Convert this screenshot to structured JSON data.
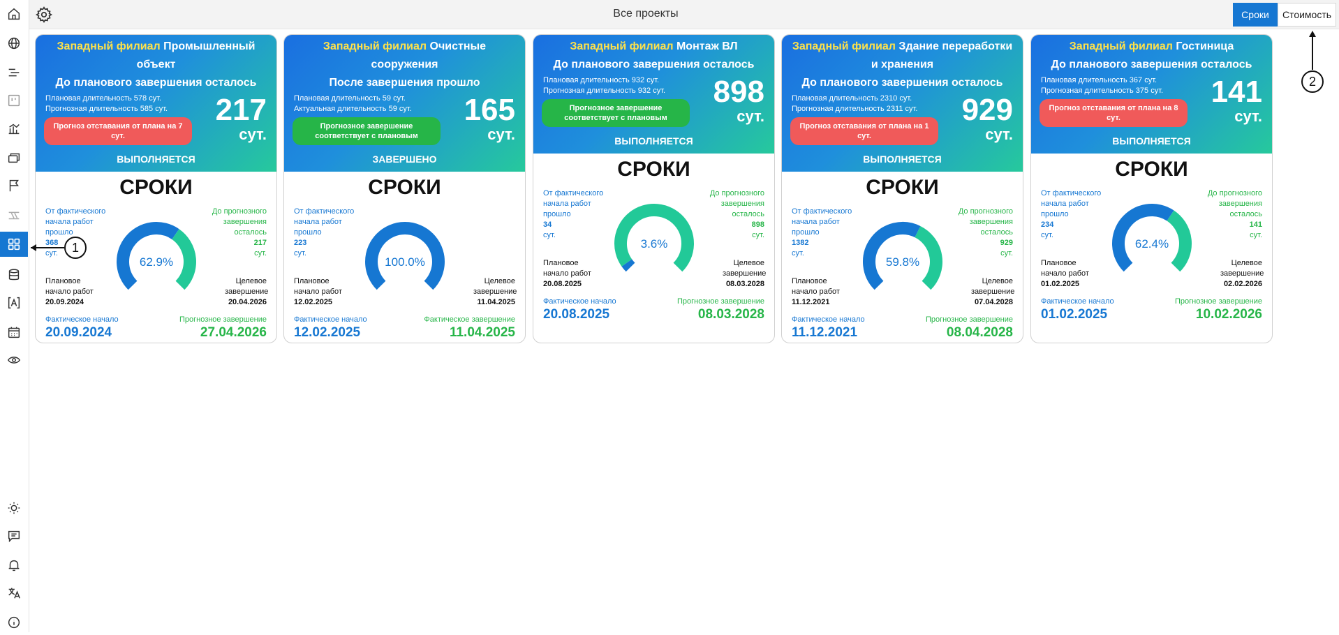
{
  "topbar": {
    "title": "Все проекты",
    "seg_active": "Сроки",
    "seg_other": "Стоимость"
  },
  "sidebar": {
    "items": [
      "home-icon",
      "globe-icon",
      "list-icon",
      "board-icon",
      "chart-icon",
      "layers-icon",
      "flag-icon",
      "gantt-icon",
      "grid-icon",
      "database-icon",
      "text-field-icon",
      "calendar-icon",
      "eye-icon"
    ],
    "bottom_items": [
      "sun-icon",
      "chat-icon",
      "bell-icon",
      "translate-icon",
      "info-icon"
    ]
  },
  "colors": {
    "accent": "#1677d2",
    "green": "#26b548",
    "red_pill": "#f05a5a",
    "branch_yellow": "#ffe24a",
    "gauge_blue": "#1677d2",
    "gauge_green": "#22c998"
  },
  "cards": [
    {
      "branch": "Западный филиал",
      "name": "Промышленный объект",
      "subtitle": "До планового завершения осталось",
      "dur1": "Плановая длительность 578 сут.",
      "dur2": "Прогнозная длительность 585 сут.",
      "pill": "Прогноз отставания от плана на 7 сут.",
      "pill_color": "red",
      "big": "217",
      "unit": "сут.",
      "status": "ВЫПОЛНЯЕТСЯ",
      "section": "СРОКИ",
      "left_label": "От фактического начала работ прошло",
      "left_value": "368",
      "left_unit": "сут.",
      "right_label": "До прогнозного завершения осталось",
      "right_value": "217",
      "right_unit": "сут.",
      "percent_text": "62.9%",
      "percent": 62.9,
      "plan_label": "Плановое начало работ",
      "plan_date": "20.09.2024",
      "target_label": "Целевое завершение",
      "target_date": "20.04.2026",
      "fact_label": "Фактическое начало",
      "fact_date": "20.09.2024",
      "prog_label": "Прогнозное завершение",
      "prog_date": "27.04.2026"
    },
    {
      "branch": "Западный филиал",
      "name": "Очистные сооружения",
      "subtitle": "После завершения прошло",
      "dur1": "Плановая длительность 59 сут.",
      "dur2": "Актуальная длительность 59 сут.",
      "pill": "Прогнозное завершение соответствует с плановым",
      "pill_color": "green",
      "big": "165",
      "unit": "сут.",
      "status": "ЗАВЕРШЕНО",
      "section": "СРОКИ",
      "left_label": "От фактического начала работ прошло",
      "left_value": "223",
      "left_unit": "сут.",
      "right_label": "",
      "right_value": "",
      "right_unit": "",
      "percent_text": "100.0%",
      "percent": 100,
      "plan_label": "Плановое начало работ",
      "plan_date": "12.02.2025",
      "target_label": "Целевое завершение",
      "target_date": "11.04.2025",
      "fact_label": "Фактическое начало",
      "fact_date": "12.02.2025",
      "prog_label": "Фактическое завершение",
      "prog_date": "11.04.2025"
    },
    {
      "branch": "Западный филиал",
      "name": "Монтаж ВЛ",
      "subtitle": "До планового завершения осталось",
      "dur1": "Плановая длительность 932 сут.",
      "dur2": "Прогнозная длительность 932 сут.",
      "pill": "Прогнозное завершение соответствует с плановым",
      "pill_color": "green",
      "big": "898",
      "unit": "сут.",
      "status": "ВЫПОЛНЯЕТСЯ",
      "section": "СРОКИ",
      "left_label": "От фактического начала работ прошло",
      "left_value": "34",
      "left_unit": "сут.",
      "right_label": "До прогнозного завершения осталось",
      "right_value": "898",
      "right_unit": "сут.",
      "percent_text": "3.6%",
      "percent": 3.6,
      "plan_label": "Плановое начало работ",
      "plan_date": "20.08.2025",
      "target_label": "Целевое завершение",
      "target_date": "08.03.2028",
      "fact_label": "Фактическое начало",
      "fact_date": "20.08.2025",
      "prog_label": "Прогнозное завершение",
      "prog_date": "08.03.2028"
    },
    {
      "branch": "Западный филиал",
      "name": "Здание переработки и хранения",
      "subtitle": "До планового завершения осталось",
      "dur1": "Плановая длительность 2310 сут.",
      "dur2": "Прогнозная длительность 2311 сут.",
      "pill": "Прогноз отставания от плана на 1 сут.",
      "pill_color": "red",
      "big": "929",
      "unit": "сут.",
      "status": "ВЫПОЛНЯЕТСЯ",
      "section": "СРОКИ",
      "left_label": "От фактического начала работ прошло",
      "left_value": "1382",
      "left_unit": "сут.",
      "right_label": "До прогнозного завершения осталось",
      "right_value": "929",
      "right_unit": "сут.",
      "percent_text": "59.8%",
      "percent": 59.8,
      "plan_label": "Плановое начало работ",
      "plan_date": "11.12.2021",
      "target_label": "Целевое завершение",
      "target_date": "07.04.2028",
      "fact_label": "Фактическое начало",
      "fact_date": "11.12.2021",
      "prog_label": "Прогнозное завершение",
      "prog_date": "08.04.2028"
    },
    {
      "branch": "Западный филиал",
      "name": "Гостиница",
      "subtitle": "До планового завершения осталось",
      "dur1": "Плановая длительность 367 сут.",
      "dur2": "Прогнозная длительность 375 сут.",
      "pill": "Прогноз отставания от плана на 8 сут.",
      "pill_color": "red",
      "big": "141",
      "unit": "сут.",
      "status": "ВЫПОЛНЯЕТСЯ",
      "section": "СРОКИ",
      "left_label": "От фактического начала работ прошло",
      "left_value": "234",
      "left_unit": "сут.",
      "right_label": "До прогнозного завершения осталось",
      "right_value": "141",
      "right_unit": "сут.",
      "percent_text": "62.4%",
      "percent": 62.4,
      "plan_label": "Плановое начало работ",
      "plan_date": "01.02.2025",
      "target_label": "Целевое завершение",
      "target_date": "02.02.2026",
      "fact_label": "Фактическое начало",
      "fact_date": "01.02.2025",
      "prog_label": "Прогнозное завершение",
      "prog_date": "10.02.2026"
    }
  ],
  "annotations": [
    "1",
    "2"
  ]
}
